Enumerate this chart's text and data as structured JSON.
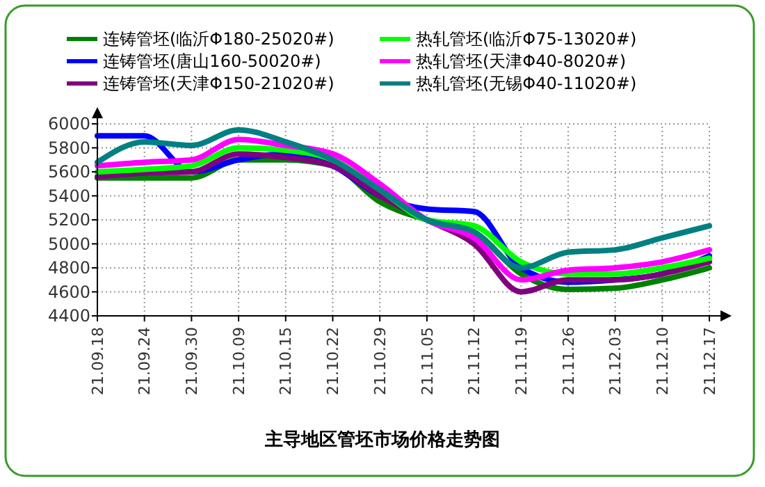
{
  "chart_data": {
    "type": "line",
    "title": "主导地区管坯市场价格走势图",
    "categories": [
      "21.09.18",
      "21.09.24",
      "21.09.30",
      "21.10.09",
      "21.10.15",
      "21.10.22",
      "21.10.29",
      "21.11.05",
      "21.11.12",
      "21.11.19",
      "21.11.26",
      "21.12.03",
      "21.12.10",
      "21.12.17"
    ],
    "series": [
      {
        "name": "连铸管坯(临沂Φ180-25020#)",
        "color": "#008000",
        "values": [
          5550,
          5550,
          5550,
          5700,
          5700,
          5650,
          5350,
          5200,
          5100,
          4750,
          4620,
          4630,
          4700,
          4800
        ]
      },
      {
        "name": "连铸管坯(唐山160-50020#)",
        "color": "#0000ff",
        "values": [
          5900,
          5900,
          5600,
          5700,
          5750,
          5650,
          5400,
          5290,
          5270,
          4800,
          4680,
          4700,
          4750,
          4900
        ]
      },
      {
        "name": "连铸管坯(天津Φ150-21020#)",
        "color": "#800080",
        "values": [
          5560,
          5590,
          5600,
          5750,
          5720,
          5650,
          5400,
          5200,
          5000,
          4600,
          4700,
          4700,
          4750,
          4850
        ]
      },
      {
        "name": "热轧管坯(临沂Φ75-13020#)",
        "color": "#00ff00",
        "values": [
          5600,
          5620,
          5650,
          5800,
          5780,
          5700,
          5450,
          5200,
          5150,
          4850,
          4750,
          4750,
          4800,
          4880
        ]
      },
      {
        "name": "热轧管坯(天津Φ40-8020#)",
        "color": "#ff00ff",
        "values": [
          5650,
          5680,
          5700,
          5870,
          5820,
          5750,
          5500,
          5200,
          5050,
          4700,
          4780,
          4800,
          4850,
          4950
        ]
      },
      {
        "name": "热轧管坯(无锡Φ40-11020#)",
        "color": "#008080",
        "values": [
          5680,
          5850,
          5820,
          5950,
          5850,
          5700,
          5450,
          5200,
          5100,
          4800,
          4930,
          4950,
          5050,
          5150
        ]
      }
    ],
    "ylim": [
      4400,
      6000
    ],
    "yticks": [
      4400,
      4600,
      4800,
      5000,
      5200,
      5400,
      5600,
      5800,
      6000
    ],
    "grid": true,
    "legend": "top",
    "marker": "none",
    "line_style": "solid"
  }
}
